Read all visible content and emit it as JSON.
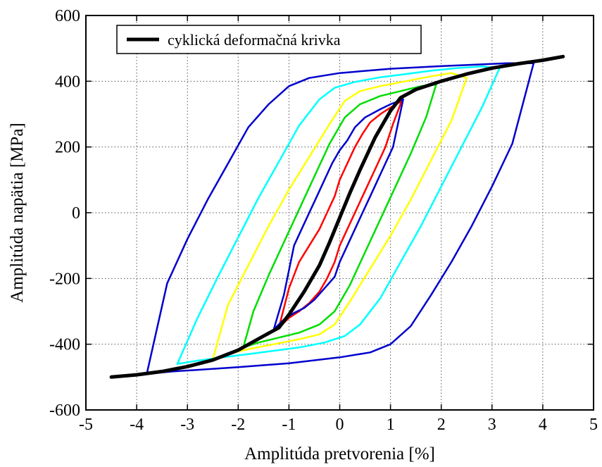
{
  "chart_data": {
    "type": "line",
    "title": "",
    "xlabel": "Amplitúda pretvorenia [%]",
    "ylabel": "Amplitúda napätia [MPa]",
    "xlim": [
      -5,
      5
    ],
    "ylim": [
      -600,
      600
    ],
    "x_ticks": [
      "-5",
      "-4",
      "-3",
      "-2",
      "-1",
      "0",
      "1",
      "2",
      "3",
      "4",
      "5"
    ],
    "y_ticks": [
      "-600",
      "-400",
      "-200",
      "0",
      "200",
      "400",
      "600"
    ],
    "grid": true,
    "legend": {
      "position": "top-left",
      "entries": [
        "cyklická deformačná krivka"
      ]
    },
    "series": [
      {
        "name": "",
        "color": "#ff0000",
        "x": [
          -1.2,
          -1.0,
          -0.8,
          -0.6,
          -0.4,
          -0.25,
          -0.1,
          0.0,
          0.15,
          0.3,
          0.45,
          0.6,
          0.75,
          0.9,
          1.05,
          1.22,
          1.0,
          0.8,
          0.6,
          0.45,
          0.3,
          0.15,
          0.0,
          -0.1,
          -0.25,
          -0.4,
          -0.6,
          -0.8,
          -1.0,
          -1.2
        ],
        "y": [
          -350,
          -320,
          -300,
          -275,
          -240,
          -200,
          -150,
          -100,
          -50,
          0,
          50,
          100,
          150,
          200,
          270,
          340,
          320,
          300,
          275,
          240,
          200,
          150,
          100,
          50,
          0,
          -50,
          -100,
          -150,
          -230,
          -350
        ]
      },
      {
        "name": "",
        "color": "#0000cd",
        "x": [
          -1.3,
          -1.1,
          -0.9,
          -0.7,
          -0.5,
          -0.3,
          -0.1,
          0.0,
          0.15,
          0.3,
          0.45,
          0.6,
          0.75,
          0.9,
          1.05,
          1.25,
          1.0,
          0.8,
          0.5,
          0.3,
          0.15,
          0.0,
          -0.15,
          -0.3,
          -0.45,
          -0.6,
          -0.75,
          -0.9,
          -1.1,
          -1.3
        ],
        "y": [
          -355,
          -325,
          -305,
          -290,
          -265,
          -230,
          -195,
          -150,
          -100,
          -50,
          0,
          50,
          100,
          150,
          200,
          345,
          330,
          315,
          290,
          260,
          220,
          190,
          150,
          100,
          50,
          0,
          -50,
          -100,
          -250,
          -355
        ]
      },
      {
        "name": "",
        "color": "#00dd00",
        "x": [
          -1.9,
          -1.6,
          -1.2,
          -0.8,
          -0.4,
          -0.1,
          0.2,
          0.5,
          0.8,
          1.1,
          1.4,
          1.7,
          1.9,
          1.6,
          1.2,
          0.8,
          0.4,
          0.1,
          -0.2,
          -0.5,
          -0.8,
          -1.1,
          -1.4,
          -1.7,
          -1.9
        ],
        "y": [
          -410,
          -395,
          -380,
          -365,
          -340,
          -300,
          -220,
          -120,
          -20,
          80,
          180,
          290,
          390,
          385,
          370,
          355,
          330,
          290,
          210,
          110,
          10,
          -90,
          -190,
          -300,
          -410
        ]
      },
      {
        "name": "",
        "color": "#ffff00",
        "x": [
          -2.5,
          -2.2,
          -1.8,
          -1.3,
          -0.8,
          -0.4,
          -0.1,
          0.2,
          0.6,
          1.0,
          1.4,
          1.8,
          2.2,
          2.5,
          2.2,
          1.8,
          1.3,
          0.8,
          0.4,
          0.1,
          -0.2,
          -0.6,
          -1.0,
          -1.4,
          -1.8,
          -2.2,
          -2.5
        ],
        "y": [
          -445,
          -430,
          -415,
          -400,
          -385,
          -370,
          -340,
          -270,
          -170,
          -70,
          40,
          160,
          280,
          410,
          425,
          415,
          400,
          385,
          370,
          340,
          270,
          170,
          70,
          -40,
          -160,
          -280,
          -445
        ]
      },
      {
        "name": "",
        "color": "#00ffff",
        "x": [
          -3.2,
          -2.8,
          -2.3,
          -1.8,
          -1.3,
          -0.8,
          -0.3,
          0.1,
          0.4,
          0.8,
          1.2,
          1.6,
          2.0,
          2.4,
          2.8,
          3.15,
          2.8,
          2.3,
          1.8,
          1.3,
          0.8,
          0.3,
          -0.1,
          -0.4,
          -0.8,
          -1.2,
          -1.6,
          -2.0,
          -2.4,
          -2.8,
          -3.2
        ],
        "y": [
          -460,
          -450,
          -440,
          -430,
          -420,
          -410,
          -395,
          -375,
          -340,
          -260,
          -150,
          -40,
          80,
          200,
          320,
          440,
          445,
          440,
          432,
          422,
          412,
          398,
          380,
          345,
          265,
          155,
          45,
          -75,
          -195,
          -320,
          -460
        ]
      },
      {
        "name": "",
        "color": "#0000cd",
        "x": [
          -3.8,
          -3.3,
          -2.8,
          -2.0,
          -1.0,
          0.0,
          0.6,
          1.0,
          1.4,
          1.8,
          2.2,
          2.6,
          3.0,
          3.4,
          3.82,
          3.3,
          2.6,
          2.0,
          1.0,
          0.0,
          -0.6,
          -1.0,
          -1.4,
          -1.8,
          -2.2,
          -2.6,
          -3.0,
          -3.4,
          -3.8
        ],
        "y": [
          -490,
          -483,
          -478,
          -470,
          -458,
          -440,
          -425,
          -400,
          -345,
          -250,
          -150,
          -40,
          80,
          210,
          455,
          455,
          450,
          446,
          438,
          425,
          410,
          385,
          330,
          260,
          150,
          40,
          -80,
          -215,
          -490
        ]
      },
      {
        "name": "cyklická deformačná krivka",
        "color": "#000000",
        "x": [
          -4.5,
          -4.0,
          -3.5,
          -3.0,
          -2.5,
          -2.0,
          -1.5,
          -1.2,
          -1.0,
          -0.7,
          -0.4,
          -0.2,
          0.0,
          0.2,
          0.4,
          0.7,
          1.0,
          1.2,
          1.5,
          2.0,
          2.5,
          3.0,
          3.5,
          4.0,
          4.4
        ],
        "y": [
          -500,
          -493,
          -483,
          -468,
          -448,
          -418,
          -375,
          -350,
          -310,
          -240,
          -160,
          -90,
          -15,
          60,
          130,
          230,
          310,
          350,
          375,
          400,
          422,
          440,
          453,
          464,
          475
        ]
      }
    ]
  }
}
